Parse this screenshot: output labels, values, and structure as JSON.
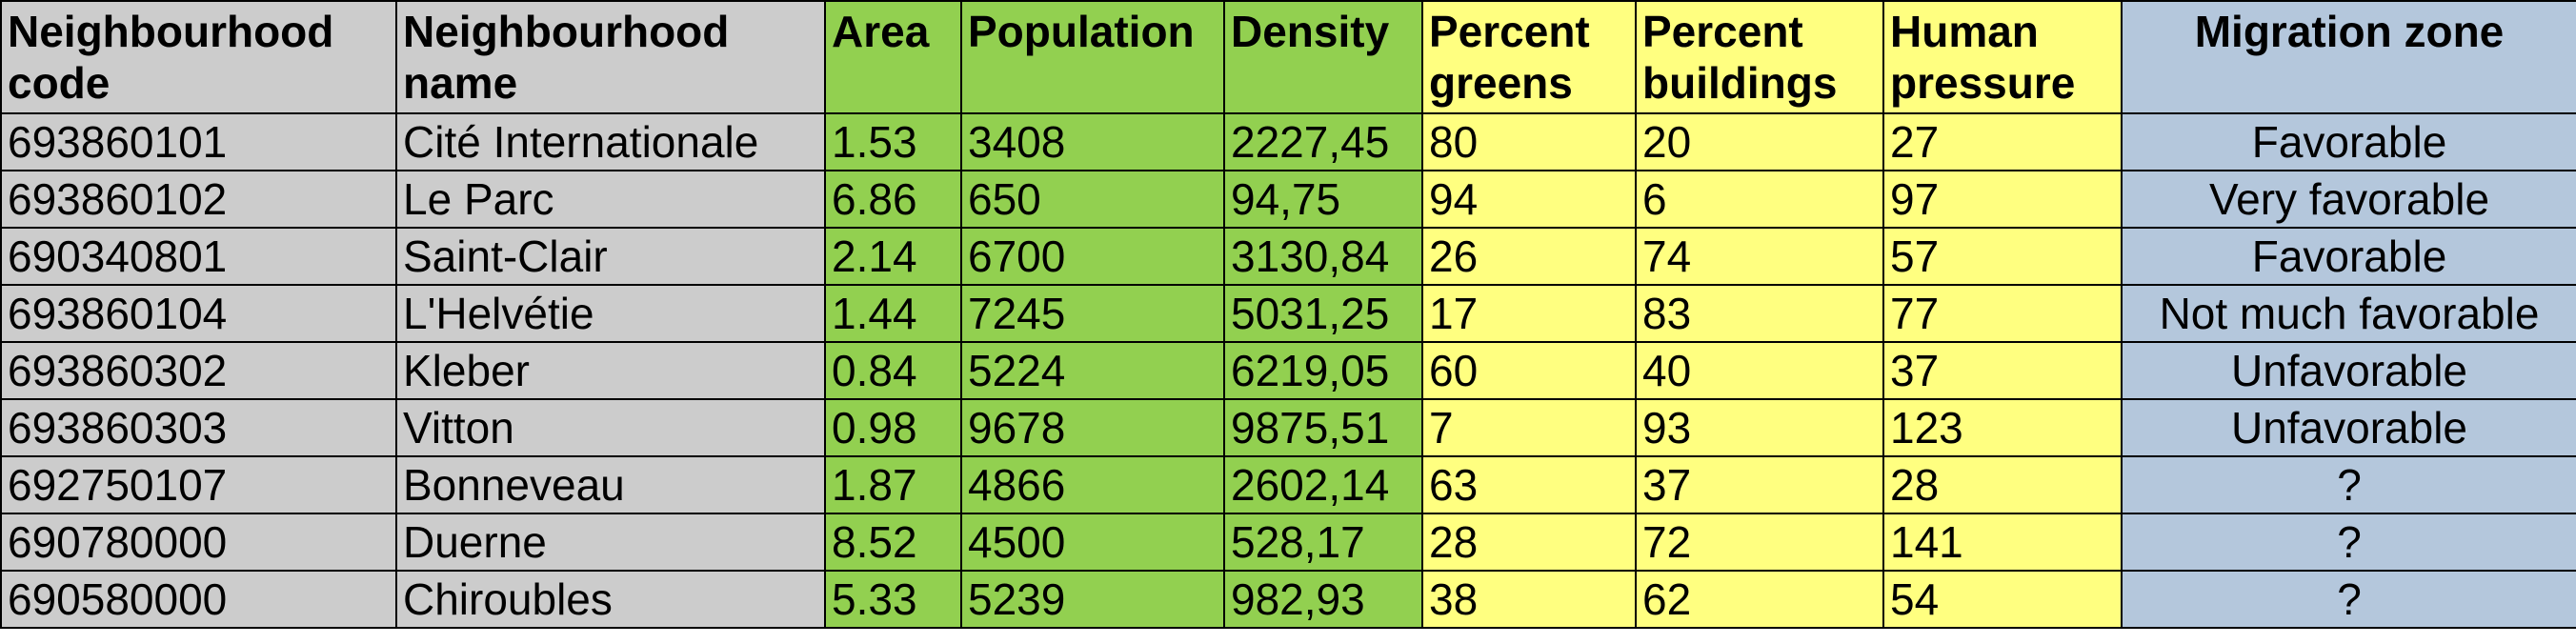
{
  "columns": [
    {
      "label": "Neighbourhood code",
      "key": "code",
      "color": "#cccccc"
    },
    {
      "label": "Neighbourhood name",
      "key": "name",
      "color": "#cccccc"
    },
    {
      "label": "Area",
      "key": "area",
      "color": "#92d050"
    },
    {
      "label": "Population",
      "key": "population",
      "color": "#92d050"
    },
    {
      "label": "Density",
      "key": "density",
      "color": "#92d050"
    },
    {
      "label": "Percent greens",
      "key": "greens",
      "color": "#ffff80"
    },
    {
      "label": "Percent buildings",
      "key": "buildings",
      "color": "#ffff80"
    },
    {
      "label": "Human pressure",
      "key": "pressure",
      "color": "#ffff80"
    },
    {
      "label": "Migration zone",
      "key": "zone",
      "color": "#b4c7dc"
    }
  ],
  "rows": [
    {
      "code": "693860101",
      "name": "Cité Internationale",
      "area": "1.53",
      "population": "3408",
      "density": "2227,45",
      "greens": "80",
      "buildings": "20",
      "pressure": "27",
      "zone": "Favorable"
    },
    {
      "code": "693860102",
      "name": "Le Parc",
      "area": "6.86",
      "population": "650",
      "density": "94,75",
      "greens": "94",
      "buildings": "6",
      "pressure": "97",
      "zone": "Very favorable"
    },
    {
      "code": "690340801",
      "name": "Saint-Clair",
      "area": "2.14",
      "population": "6700",
      "density": "3130,84",
      "greens": "26",
      "buildings": "74",
      "pressure": "57",
      "zone": "Favorable"
    },
    {
      "code": "693860104",
      "name": "L'Helvétie",
      "area": "1.44",
      "population": "7245",
      "density": "5031,25",
      "greens": "17",
      "buildings": "83",
      "pressure": "77",
      "zone": "Not much favorable"
    },
    {
      "code": "693860302",
      "name": "Kleber",
      "area": "0.84",
      "population": "5224",
      "density": "6219,05",
      "greens": "60",
      "buildings": "40",
      "pressure": "37",
      "zone": "Unfavorable"
    },
    {
      "code": "693860303",
      "name": "Vitton",
      "area": "0.98",
      "population": "9678",
      "density": "9875,51",
      "greens": "7",
      "buildings": "93",
      "pressure": "123",
      "zone": "Unfavorable"
    },
    {
      "code": "692750107",
      "name": "Bonneveau",
      "area": "1.87",
      "population": "4866",
      "density": "2602,14",
      "greens": "63",
      "buildings": "37",
      "pressure": "28",
      "zone": "?"
    },
    {
      "code": "690780000",
      "name": "Duerne",
      "area": "8.52",
      "population": "4500",
      "density": "528,17",
      "greens": "28",
      "buildings": "72",
      "pressure": "141",
      "zone": "?"
    },
    {
      "code": "690580000",
      "name": "Chiroubles",
      "area": "5.33",
      "population": "5239",
      "density": "982,93",
      "greens": "38",
      "buildings": "62",
      "pressure": "54",
      "zone": "?"
    }
  ]
}
